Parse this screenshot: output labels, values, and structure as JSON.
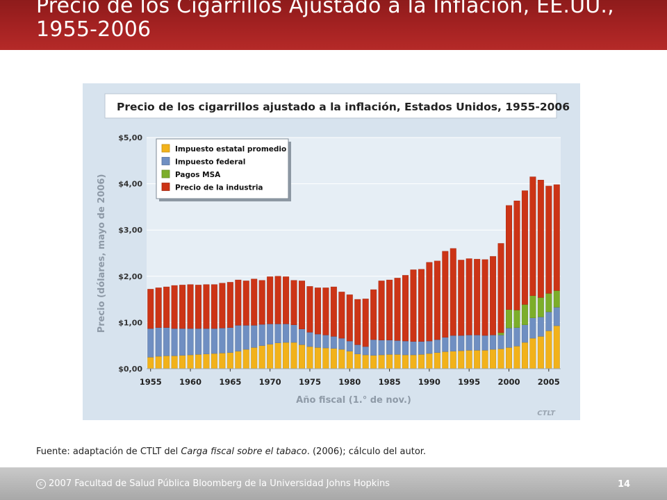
{
  "slide": {
    "title": "Precio de los Cigarrillos Ajustado a la Inflación, EE.UU., 1955-2006",
    "source_prefix": "Fuente: adaptación de CTLT del ",
    "source_italic": "Carga fiscal sobre el tabaco",
    "source_suffix": ". (2006); cálculo del autor.",
    "footer_symbol": "c",
    "footer_text": "2007 Facultad de Salud Pública Bloomberg de la Universidad Johns Hopkins",
    "page_number": "14"
  },
  "colors": {
    "estatal": "#f2b21a",
    "federal": "#6f8fc2",
    "msa": "#7cae2a",
    "industria": "#cc3416",
    "chart_bg": "#d7e3ee"
  },
  "chart_data": {
    "type": "bar",
    "stacked": true,
    "title": "Precio de los cigarrillos ajustado a la inflación, Estados Unidos, 1955-2006",
    "xlabel": "Año fiscal (1.° de nov.)",
    "ylabel": "Precio (dólares, mayo de 2006)",
    "ylim": [
      0,
      5
    ],
    "yticks": [
      "$0,00",
      "$1,00",
      "$2,00",
      "$3,00",
      "$4,00",
      "$5,00"
    ],
    "xticks": [
      "1955",
      "1960",
      "1965",
      "1970",
      "1975",
      "1980",
      "1985",
      "1990",
      "1995",
      "2000",
      "2005"
    ],
    "grid": true,
    "legend_position": "top-left",
    "watermark": "CTLT",
    "x": [
      1955,
      1956,
      1957,
      1958,
      1959,
      1960,
      1961,
      1962,
      1963,
      1964,
      1965,
      1966,
      1967,
      1968,
      1969,
      1970,
      1971,
      1972,
      1973,
      1974,
      1975,
      1976,
      1977,
      1978,
      1979,
      1980,
      1981,
      1982,
      1983,
      1984,
      1985,
      1986,
      1987,
      1988,
      1989,
      1990,
      1991,
      1992,
      1993,
      1994,
      1995,
      1996,
      1997,
      1998,
      1999,
      2000,
      2001,
      2002,
      2003,
      2004,
      2005,
      2006
    ],
    "series": [
      {
        "name": "Impuesto estatal promedio",
        "color_key": "estatal",
        "values": [
          0.25,
          0.27,
          0.28,
          0.28,
          0.29,
          0.3,
          0.31,
          0.32,
          0.33,
          0.34,
          0.35,
          0.38,
          0.42,
          0.46,
          0.5,
          0.53,
          0.56,
          0.57,
          0.57,
          0.52,
          0.48,
          0.46,
          0.45,
          0.44,
          0.42,
          0.38,
          0.32,
          0.3,
          0.29,
          0.3,
          0.31,
          0.31,
          0.3,
          0.3,
          0.31,
          0.33,
          0.35,
          0.37,
          0.38,
          0.39,
          0.4,
          0.4,
          0.4,
          0.42,
          0.43,
          0.46,
          0.49,
          0.57,
          0.66,
          0.7,
          0.82,
          0.93
        ]
      },
      {
        "name": "Impuesto federal",
        "color_key": "federal",
        "values": [
          0.62,
          0.62,
          0.61,
          0.59,
          0.58,
          0.57,
          0.56,
          0.55,
          0.54,
          0.54,
          0.54,
          0.56,
          0.52,
          0.48,
          0.46,
          0.44,
          0.41,
          0.4,
          0.38,
          0.34,
          0.31,
          0.29,
          0.28,
          0.26,
          0.24,
          0.22,
          0.2,
          0.18,
          0.34,
          0.32,
          0.31,
          0.3,
          0.3,
          0.29,
          0.28,
          0.27,
          0.28,
          0.31,
          0.34,
          0.33,
          0.33,
          0.33,
          0.32,
          0.31,
          0.3,
          0.42,
          0.4,
          0.38,
          0.44,
          0.42,
          0.41,
          0.4
        ]
      },
      {
        "name": "Pagos MSA",
        "color_key": "msa",
        "values": [
          0,
          0,
          0,
          0,
          0,
          0,
          0,
          0,
          0,
          0,
          0,
          0,
          0,
          0,
          0,
          0,
          0,
          0,
          0,
          0,
          0,
          0,
          0,
          0,
          0,
          0,
          0,
          0,
          0,
          0,
          0,
          0,
          0,
          0,
          0,
          0,
          0,
          0,
          0,
          0,
          0,
          0,
          0,
          0,
          0.05,
          0.4,
          0.38,
          0.44,
          0.48,
          0.42,
          0.4,
          0.36
        ]
      },
      {
        "name": "Precio de la industria",
        "color_key": "industria",
        "values": [
          0.85,
          0.86,
          0.88,
          0.93,
          0.94,
          0.95,
          0.94,
          0.95,
          0.95,
          0.97,
          0.98,
          0.98,
          0.96,
          1.0,
          0.95,
          1.02,
          1.03,
          1.02,
          0.96,
          1.04,
          0.99,
          1.0,
          1.02,
          1.07,
          1.0,
          1.0,
          0.98,
          1.03,
          1.08,
          1.28,
          1.3,
          1.35,
          1.42,
          1.55,
          1.56,
          1.7,
          1.7,
          1.86,
          1.88,
          1.63,
          1.65,
          1.64,
          1.64,
          1.7,
          1.93,
          2.25,
          2.36,
          2.46,
          2.57,
          2.54,
          2.32,
          2.29
        ]
      }
    ]
  }
}
